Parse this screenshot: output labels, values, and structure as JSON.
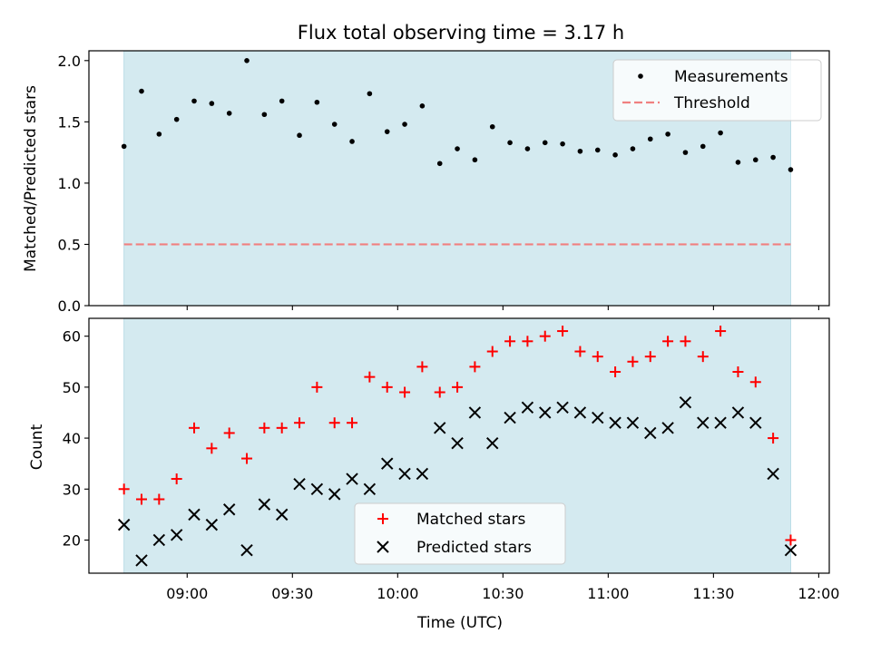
{
  "figure": {
    "title": "Flux total observing time = 3.17 h",
    "xlabel": "Time (UTC)",
    "x_ticks": [
      "09:00",
      "09:30",
      "10:00",
      "10:30",
      "11:00",
      "11:30",
      "12:00"
    ]
  },
  "colors": {
    "observing_span": "#d4eaf0",
    "observing_span_edge": "#b9dde6",
    "measurements": "#000000",
    "threshold": "#f08080",
    "matched": "#ff0000",
    "predicted": "#000000"
  },
  "chart_data": [
    {
      "type": "scatter",
      "panel": "top",
      "ylabel": "Matched/Predicted stars",
      "ylim": [
        0,
        2.08
      ],
      "y_ticks": [
        "0.0",
        "0.5",
        "1.0",
        "1.5",
        "2.0"
      ],
      "xlim": [
        "08:32",
        "12:03"
      ],
      "shaded_interval": [
        "08:42",
        "11:52"
      ],
      "legend": {
        "placement": "top-right",
        "entries": [
          "Measurements",
          "Threshold"
        ]
      },
      "series": [
        {
          "name": "Measurements",
          "marker": "dot",
          "x": [
            "08:42",
            "08:47",
            "08:52",
            "08:57",
            "09:02",
            "09:07",
            "09:12",
            "09:17",
            "09:22",
            "09:27",
            "09:32",
            "09:37",
            "09:42",
            "09:47",
            "09:52",
            "09:57",
            "10:02",
            "10:07",
            "10:12",
            "10:17",
            "10:22",
            "10:27",
            "10:32",
            "10:37",
            "10:42",
            "10:47",
            "10:52",
            "10:57",
            "11:02",
            "11:07",
            "11:12",
            "11:17",
            "11:22",
            "11:27",
            "11:32",
            "11:37",
            "11:42",
            "11:47",
            "11:52"
          ],
          "y": [
            1.3,
            1.75,
            1.4,
            1.52,
            1.67,
            1.65,
            1.57,
            2.0,
            1.56,
            1.67,
            1.39,
            1.66,
            1.48,
            1.34,
            1.73,
            1.42,
            1.48,
            1.63,
            1.16,
            1.28,
            1.19,
            1.46,
            1.33,
            1.28,
            1.33,
            1.32,
            1.26,
            1.27,
            1.23,
            1.28,
            1.36,
            1.4,
            1.25,
            1.3,
            1.41,
            1.17,
            1.19,
            1.21,
            1.11
          ]
        },
        {
          "name": "Threshold",
          "line": "dashed",
          "x": [
            "08:42",
            "11:52"
          ],
          "y": [
            0.5,
            0.5
          ]
        }
      ]
    },
    {
      "type": "scatter",
      "panel": "bottom",
      "ylabel": "Count",
      "ylim": [
        13.5,
        63.5
      ],
      "y_ticks": [
        "20",
        "30",
        "40",
        "50",
        "60"
      ],
      "xlim": [
        "08:32",
        "12:03"
      ],
      "shaded_interval": [
        "08:42",
        "11:52"
      ],
      "legend": {
        "placement": "lower-center",
        "entries": [
          "Matched stars",
          "Predicted stars"
        ]
      },
      "series": [
        {
          "name": "Matched stars",
          "marker": "plus",
          "x": [
            "08:42",
            "08:47",
            "08:52",
            "08:57",
            "09:02",
            "09:07",
            "09:12",
            "09:17",
            "09:22",
            "09:27",
            "09:32",
            "09:37",
            "09:42",
            "09:47",
            "09:52",
            "09:57",
            "10:02",
            "10:07",
            "10:12",
            "10:17",
            "10:22",
            "10:27",
            "10:32",
            "10:37",
            "10:42",
            "10:47",
            "10:52",
            "10:57",
            "11:02",
            "11:07",
            "11:12",
            "11:17",
            "11:22",
            "11:27",
            "11:32",
            "11:37",
            "11:42",
            "11:47",
            "11:52"
          ],
          "y": [
            30,
            28,
            28,
            32,
            42,
            38,
            41,
            36,
            42,
            42,
            43,
            50,
            43,
            43,
            52,
            50,
            49,
            54,
            49,
            50,
            54,
            57,
            59,
            59,
            60,
            61,
            57,
            56,
            53,
            55,
            56,
            59,
            59,
            56,
            61,
            53,
            51,
            40,
            20
          ]
        },
        {
          "name": "Predicted stars",
          "marker": "x",
          "x": [
            "08:42",
            "08:47",
            "08:52",
            "08:57",
            "09:02",
            "09:07",
            "09:12",
            "09:17",
            "09:22",
            "09:27",
            "09:32",
            "09:37",
            "09:42",
            "09:47",
            "09:52",
            "09:57",
            "10:02",
            "10:07",
            "10:12",
            "10:17",
            "10:22",
            "10:27",
            "10:32",
            "10:37",
            "10:42",
            "10:47",
            "10:52",
            "10:57",
            "11:02",
            "11:07",
            "11:12",
            "11:17",
            "11:22",
            "11:27",
            "11:32",
            "11:37",
            "11:42",
            "11:47",
            "11:52"
          ],
          "y": [
            23,
            16,
            20,
            21,
            25,
            23,
            26,
            18,
            27,
            25,
            31,
            30,
            29,
            32,
            30,
            35,
            33,
            33,
            42,
            39,
            45,
            39,
            44,
            46,
            45,
            46,
            45,
            44,
            43,
            43,
            41,
            42,
            47,
            43,
            43,
            45,
            43,
            33,
            18
          ]
        }
      ]
    }
  ]
}
